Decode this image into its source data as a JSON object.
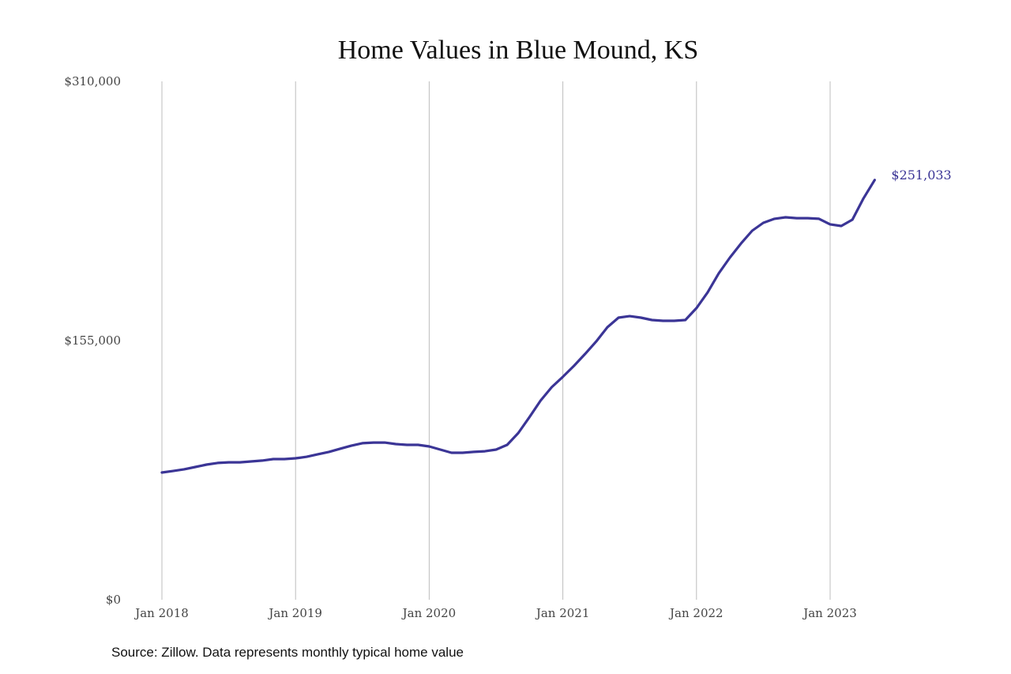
{
  "chart_data": {
    "type": "line",
    "title": "Home Values in Blue Mound, KS",
    "xlabel": "",
    "ylabel": "",
    "ylim": [
      0,
      310000
    ],
    "y_ticks": [
      0,
      155000,
      310000
    ],
    "y_tick_labels": [
      "$0",
      "$155,000",
      "$310,000"
    ],
    "x_tick_labels": [
      "Jan 2018",
      "Jan 2019",
      "Jan 2020",
      "Jan 2021",
      "Jan 2022",
      "Jan 2023"
    ],
    "x_start": "Jan 2018",
    "x_end": "May 2023",
    "grid": "vertical",
    "series": [
      {
        "name": "Typical home value",
        "color": "#3b3596",
        "values": [
          76100,
          77000,
          78000,
          79400,
          80800,
          81800,
          82200,
          82200,
          82700,
          83200,
          84100,
          84100,
          84600,
          85500,
          87000,
          88400,
          90300,
          92100,
          93600,
          94000,
          94000,
          93100,
          92600,
          92600,
          91700,
          89800,
          87900,
          87900,
          88400,
          88800,
          89800,
          92600,
          99700,
          109200,
          119100,
          127100,
          133300,
          139900,
          147000,
          154500,
          163000,
          168700,
          169600,
          168700,
          167300,
          166800,
          166800,
          167300,
          174400,
          183800,
          195200,
          204600,
          213100,
          220700,
          225400,
          227800,
          228700,
          228200,
          228200,
          227800,
          224500,
          223500,
          227300,
          240100,
          251033
        ]
      }
    ],
    "end_label": "$251,033"
  },
  "source": "Source: Zillow. Data represents monthly typical home value"
}
